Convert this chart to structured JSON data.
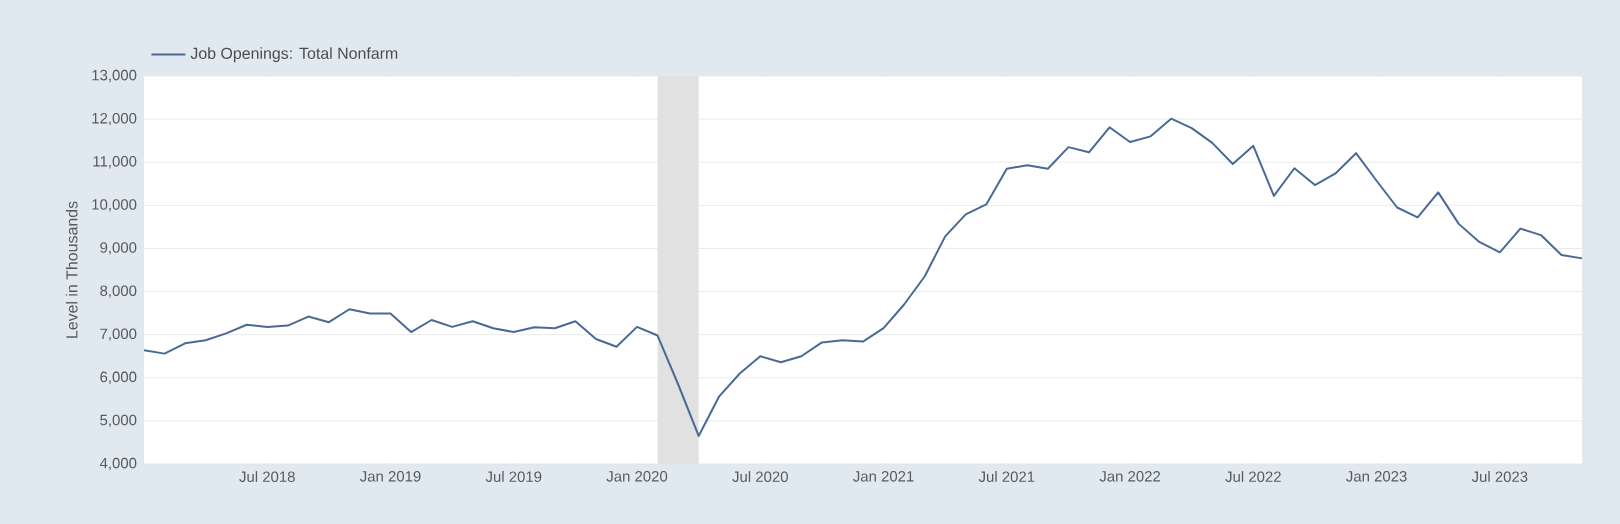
{
  "chart_data": {
    "type": "line",
    "ylabel": "Level in Thousands",
    "x": [
      "2018-01",
      "2018-02",
      "2018-03",
      "2018-04",
      "2018-05",
      "2018-06",
      "2018-07",
      "2018-08",
      "2018-09",
      "2018-10",
      "2018-11",
      "2018-12",
      "2019-01",
      "2019-02",
      "2019-03",
      "2019-04",
      "2019-05",
      "2019-06",
      "2019-07",
      "2019-08",
      "2019-09",
      "2019-10",
      "2019-11",
      "2019-12",
      "2020-01",
      "2020-02",
      "2020-03",
      "2020-04",
      "2020-05",
      "2020-06",
      "2020-07",
      "2020-08",
      "2020-09",
      "2020-10",
      "2020-11",
      "2020-12",
      "2021-01",
      "2021-02",
      "2021-03",
      "2021-04",
      "2021-05",
      "2021-06",
      "2021-07",
      "2021-08",
      "2021-09",
      "2021-10",
      "2021-11",
      "2021-12",
      "2022-01",
      "2022-02",
      "2022-03",
      "2022-04",
      "2022-05",
      "2022-06",
      "2022-07",
      "2022-08",
      "2022-09",
      "2022-10",
      "2022-11",
      "2022-12",
      "2023-01",
      "2023-02",
      "2023-03",
      "2023-04",
      "2023-05",
      "2023-06",
      "2023-07",
      "2023-08",
      "2023-09",
      "2023-10",
      "2023-11"
    ],
    "series": [
      {
        "name": "Job Openings: Total Nonfarm",
        "color": "#4a6a95",
        "values": [
          6640,
          6560,
          6800,
          6870,
          7030,
          7230,
          7180,
          7210,
          7420,
          7290,
          7590,
          7490,
          7490,
          7060,
          7340,
          7180,
          7310,
          7150,
          7060,
          7170,
          7150,
          7310,
          6900,
          6720,
          7180,
          6980,
          5850,
          4650,
          5570,
          6100,
          6500,
          6360,
          6500,
          6820,
          6870,
          6840,
          7150,
          7700,
          8350,
          9280,
          9790,
          10020,
          10850,
          10930,
          10850,
          11350,
          11230,
          11810,
          11470,
          11600,
          12010,
          11790,
          11450,
          10960,
          11380,
          10220,
          10860,
          10470,
          10740,
          11210,
          10570,
          9950,
          9720,
          10300,
          9570,
          9150,
          8910,
          9460,
          9310,
          8850,
          8770
        ]
      }
    ],
    "xlim": [
      "2018-01",
      "2023-11"
    ],
    "xticks": [
      {
        "value": "2018-07",
        "label": "Jul 2018"
      },
      {
        "value": "2019-01",
        "label": "Jan 2019"
      },
      {
        "value": "2019-07",
        "label": "Jul 2019"
      },
      {
        "value": "2020-01",
        "label": "Jan 2020"
      },
      {
        "value": "2020-07",
        "label": "Jul 2020"
      },
      {
        "value": "2021-01",
        "label": "Jan 2021"
      },
      {
        "value": "2021-07",
        "label": "Jul 2021"
      },
      {
        "value": "2022-01",
        "label": "Jan 2022"
      },
      {
        "value": "2022-07",
        "label": "Jul 2022"
      },
      {
        "value": "2023-01",
        "label": "Jan 2023"
      },
      {
        "value": "2023-07",
        "label": "Jul 2023"
      }
    ],
    "ylim": [
      4000,
      13000
    ],
    "yticks": [
      {
        "value": 4000,
        "label": "4,000"
      },
      {
        "value": 5000,
        "label": "5,000"
      },
      {
        "value": 6000,
        "label": "6,000"
      },
      {
        "value": 7000,
        "label": "7,000"
      },
      {
        "value": 8000,
        "label": "8,000"
      },
      {
        "value": 9000,
        "label": "9,000"
      },
      {
        "value": 10000,
        "label": "10,000"
      },
      {
        "value": 11000,
        "label": "11,000"
      },
      {
        "value": 12000,
        "label": "12,000"
      },
      {
        "value": 13000,
        "label": "13,000"
      }
    ],
    "bands": [
      {
        "axis": "x",
        "from": "2020-02",
        "to": "2020-04",
        "color": "#e1e1e1"
      }
    ],
    "grid": "y",
    "legend": "top left",
    "marker": "none",
    "line_style": "solid"
  }
}
